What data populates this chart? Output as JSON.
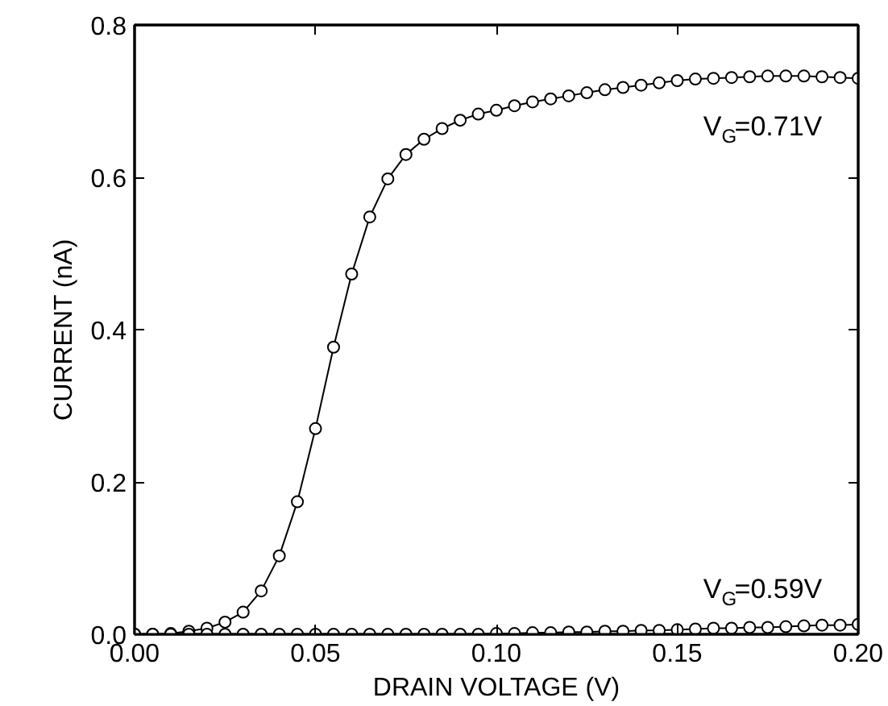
{
  "chart_data": {
    "type": "line",
    "xlabel": "DRAIN VOLTAGE (V)",
    "ylabel": "CURRENT (nA)",
    "x": [
      0,
      0.005,
      0.01,
      0.015,
      0.02,
      0.025,
      0.03,
      0.035,
      0.04,
      0.045,
      0.05,
      0.055,
      0.06,
      0.065,
      0.07,
      0.075,
      0.08,
      0.085,
      0.09,
      0.095,
      0.1,
      0.105,
      0.11,
      0.115,
      0.12,
      0.125,
      0.13,
      0.135,
      0.14,
      0.145,
      0.15,
      0.155,
      0.16,
      0.165,
      0.17,
      0.175,
      0.18,
      0.185,
      0.19,
      0.195,
      0.2
    ],
    "series": [
      {
        "color": "#000000",
        "values": [
          0,
          0,
          0.001,
          0.004,
          0.008,
          0.016,
          0.029,
          0.057,
          0.103,
          0.174,
          0.27,
          0.377,
          0.473,
          0.548,
          0.598,
          0.63,
          0.65,
          0.664,
          0.675,
          0.683,
          0.688,
          0.694,
          0.699,
          0.703,
          0.707,
          0.711,
          0.715,
          0.718,
          0.721,
          0.724,
          0.727,
          0.729,
          0.73,
          0.731,
          0.732,
          0.733,
          0.733,
          0.733,
          0.732,
          0.731,
          0.73
        ]
      },
      {
        "color": "#000000",
        "values": [
          0,
          0,
          0,
          0,
          0,
          0,
          0,
          0,
          0,
          0,
          0,
          0,
          0,
          0,
          0,
          0,
          0,
          0,
          0,
          0,
          0.001,
          0.001,
          0.002,
          0.002,
          0.003,
          0.003,
          0.004,
          0.004,
          0.005,
          0.005,
          0.006,
          0.007,
          0.008,
          0.008,
          0.009,
          0.009,
          0.01,
          0.011,
          0.012,
          0.012,
          0.013
        ]
      }
    ],
    "annotations": [
      "V$_{G}$=0.71V",
      "V$_{G}$=0.59V"
    ],
    "xlim": [
      0,
      0.2
    ],
    "ylim": [
      0,
      0.8
    ],
    "xticks": [
      {
        "value": 0,
        "label": "0.00"
      },
      0.05,
      {
        "value": 0.1,
        "label": "0.10"
      },
      0.15,
      {
        "value": 0.2,
        "label": "0.20"
      }
    ],
    "yticks": [
      {
        "value": 0,
        "label": "0.0"
      },
      0.2,
      0.4,
      0.6,
      0.8
    ],
    "marker": "circle",
    "line_style": "solid",
    "grid": false
  }
}
